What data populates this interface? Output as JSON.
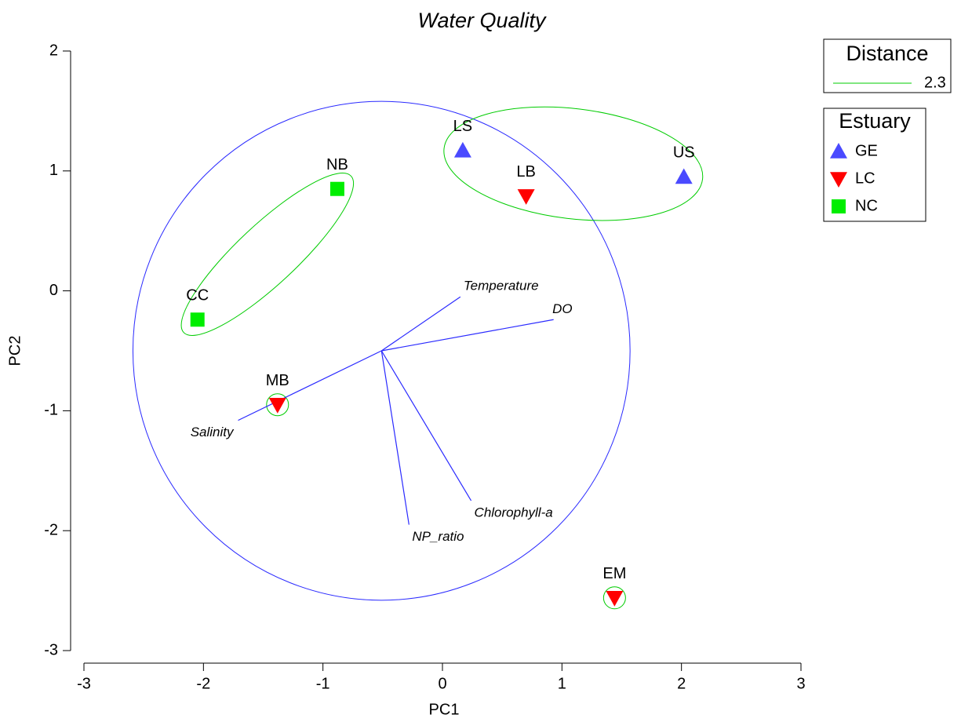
{
  "chart_data": {
    "type": "biplot",
    "title": "Water Quality",
    "title_color": "#2020ff",
    "x_label": "PC1",
    "y_label": "PC2",
    "xlim": [
      -3,
      3
    ],
    "ylim": [
      -3,
      2
    ],
    "xticks": [
      -3,
      -2,
      -1,
      0,
      1,
      2,
      3
    ],
    "yticks": [
      -3,
      -2,
      -1,
      0,
      1,
      2
    ],
    "legend_title": "Estuary",
    "series": [
      {
        "name": "GE",
        "color": "#4a4aff",
        "marker": "triangle-up",
        "x": [
          0.17,
          2.02
        ],
        "y": [
          1.17,
          0.95
        ],
        "labels": [
          "LS",
          "US"
        ]
      },
      {
        "name": "LC",
        "color": "#ff0000",
        "marker": "triangle-down",
        "x": [
          0.7,
          -1.38,
          1.44
        ],
        "y": [
          0.79,
          -0.95,
          -2.56
        ],
        "labels": [
          "LB",
          "MB",
          "EM"
        ]
      },
      {
        "name": "NC",
        "color": "#00ee00",
        "marker": "square",
        "x": [
          -0.88,
          -2.05
        ],
        "y": [
          0.85,
          -0.24
        ],
        "labels": [
          "NB",
          "CC"
        ]
      }
    ],
    "distance": {
      "title": "Distance",
      "value": 2.3,
      "color": "#00cc00",
      "clusters": [
        [
          "LS",
          "LB",
          "US"
        ],
        [
          "NB",
          "CC"
        ],
        [
          "MB"
        ],
        [
          "EM"
        ]
      ]
    },
    "vectors": {
      "color": "#2a2aff",
      "origin": [
        -0.51,
        -0.5
      ],
      "circle_radius": 2.08,
      "items": [
        {
          "name": "Temperature",
          "x": 0.15,
          "y": -0.05
        },
        {
          "name": "DO",
          "x": 0.93,
          "y": -0.24
        },
        {
          "name": "Salinity",
          "x": -1.71,
          "y": -1.08
        },
        {
          "name": "NP_ratio",
          "x": -0.28,
          "y": -1.95
        },
        {
          "name": "Chlorophyll-a",
          "x": 0.24,
          "y": -1.75
        }
      ]
    }
  }
}
